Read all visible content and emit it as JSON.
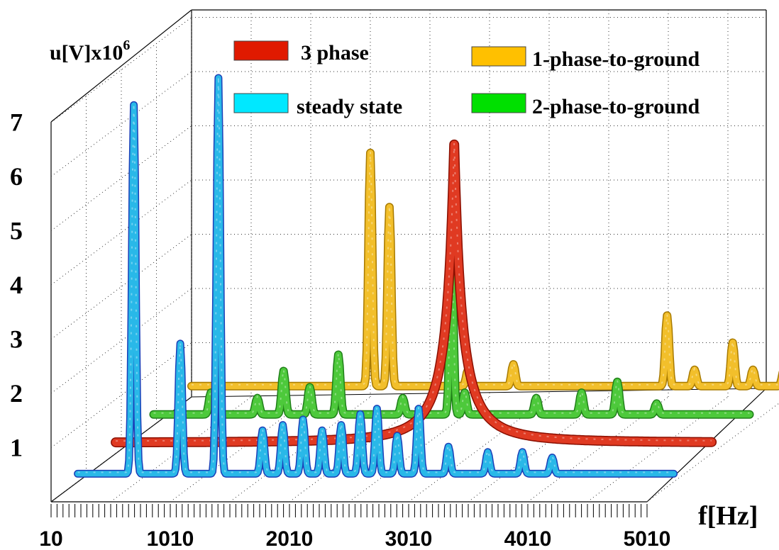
{
  "chart_data": {
    "type": "line",
    "style": "3d-waterfall",
    "ylabel_base": "u[V]x10",
    "ylabel_exp": "6",
    "xlabel": "f[Hz]",
    "yticks": [
      "1",
      "2",
      "3",
      "4",
      "5",
      "6",
      "7"
    ],
    "ylim": [
      0,
      7
    ],
    "xticks": [
      "10",
      "1010",
      "2010",
      "3010",
      "4010",
      "5010"
    ],
    "xlim": [
      10,
      5010
    ],
    "grid": true,
    "legend_position": "top",
    "series": [
      {
        "name": "1-phase-to-ground",
        "color": "#f2bf2b",
        "peaks": [
          [
            1510,
            4.3
          ],
          [
            1670,
            3.3
          ],
          [
            2330,
            0.3
          ],
          [
            2710,
            0.4
          ],
          [
            4000,
            1.3
          ],
          [
            4230,
            0.3
          ],
          [
            4550,
            0.8
          ],
          [
            4720,
            0.3
          ],
          [
            4980,
            0.3
          ]
        ]
      },
      {
        "name": "2-phase-to-ground",
        "color": "#4dc93b",
        "peaks": [
          [
            490,
            0.4
          ],
          [
            880,
            0.3
          ],
          [
            1100,
            0.8
          ],
          [
            1320,
            0.5
          ],
          [
            1560,
            1.1
          ],
          [
            2100,
            0.3
          ],
          [
            2510,
            2.9
          ],
          [
            2620,
            0.4
          ],
          [
            3220,
            0.3
          ],
          [
            3600,
            0.4
          ],
          [
            3900,
            0.6
          ],
          [
            4230,
            0.2
          ]
        ]
      },
      {
        "name": "3 phase",
        "color": "#e03a22",
        "peaks": [
          [
            2850,
            5.5
          ]
        ]
      },
      {
        "name": "steady state",
        "color": "#29b8e8",
        "peaks": [
          [
            480,
            6.8
          ],
          [
            870,
            2.4
          ],
          [
            1190,
            7.3
          ],
          [
            1560,
            0.8
          ],
          [
            1730,
            0.9
          ],
          [
            1900,
            1.0
          ],
          [
            2060,
            0.8
          ],
          [
            2220,
            0.9
          ],
          [
            2380,
            1.1
          ],
          [
            2520,
            1.2
          ],
          [
            2690,
            0.7
          ],
          [
            2870,
            1.2
          ],
          [
            3120,
            0.5
          ],
          [
            3450,
            0.4
          ],
          [
            3740,
            0.4
          ],
          [
            3990,
            0.3
          ]
        ]
      }
    ],
    "legend": [
      {
        "label": "3 phase",
        "color": "#e01a00"
      },
      {
        "label": "1-phase-to-ground",
        "color": "#ffc000"
      },
      {
        "label": "steady state",
        "color": "#00e8ff"
      },
      {
        "label": "2-phase-to-ground",
        "color": "#00e000"
      }
    ]
  }
}
